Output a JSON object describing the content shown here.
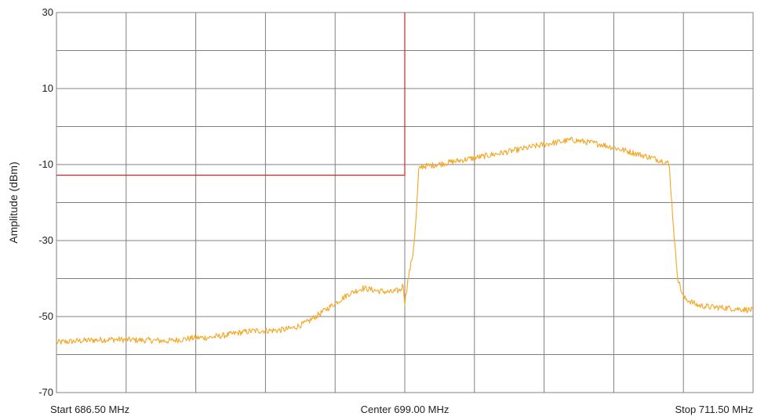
{
  "chart_data": {
    "type": "line",
    "title": "",
    "xlabel": "",
    "ylabel": "Amplitude (dBm)",
    "x_unit": "MHz",
    "xlim": [
      686.5,
      711.5
    ],
    "ylim": [
      -70,
      30
    ],
    "y_ticks": [
      30,
      10,
      -10,
      -30,
      -50,
      -70
    ],
    "y_tick_labels": [
      "30",
      "10",
      "-10",
      "-30",
      "-50",
      "-70"
    ],
    "x_tick_labels": [
      {
        "label": "Start 686.50 MHz",
        "value": 686.5
      },
      {
        "label": "Center 699.00 MHz",
        "value": 699.0
      },
      {
        "label": "Stop 711.50 MHz",
        "value": 711.5
      }
    ],
    "grid": true,
    "grid_divisions": {
      "x": 10,
      "y": 10
    },
    "colors": {
      "trace": "#f5a623",
      "limit": "#e02020",
      "grid": "#808080",
      "frame": "#808080",
      "background": "#ffffff"
    },
    "series": [
      {
        "role": "spectrum-trace",
        "x": [
          686.5,
          687.5,
          688.5,
          689.5,
          690.5,
          691.0,
          691.5,
          692.0,
          692.5,
          693.0,
          693.5,
          694.0,
          694.5,
          695.0,
          695.5,
          696.0,
          696.5,
          697.0,
          697.5,
          698.0,
          698.5,
          698.85,
          698.95,
          699.0,
          699.1,
          699.2,
          699.3,
          699.4,
          699.5,
          699.6,
          700.0,
          701.0,
          702.0,
          703.0,
          704.0,
          705.0,
          706.0,
          707.0,
          708.0,
          708.4,
          708.45,
          708.5,
          708.6,
          708.7,
          708.8,
          709.0,
          709.5,
          710.0,
          710.5,
          711.0,
          711.5
        ],
        "y": [
          -56.8,
          -56.3,
          -56.0,
          -56.2,
          -56.4,
          -56.0,
          -55.6,
          -55.5,
          -55.0,
          -54.3,
          -53.8,
          -53.7,
          -53.6,
          -53.0,
          -51.5,
          -49.0,
          -46.5,
          -44.0,
          -42.5,
          -43.2,
          -43.6,
          -43.0,
          -41.5,
          -46.5,
          -41.0,
          -37.0,
          -33.0,
          -25.0,
          -11.5,
          -10.5,
          -10.2,
          -8.9,
          -7.6,
          -6.2,
          -4.7,
          -3.5,
          -4.6,
          -6.5,
          -8.5,
          -9.4,
          -9.7,
          -11.0,
          -22.0,
          -32.0,
          -40.0,
          -45.0,
          -47.0,
          -47.5,
          -47.7,
          -48.0,
          -48.3
        ]
      },
      {
        "role": "limit-line",
        "x": [
          686.5,
          699.0,
          699.0
        ],
        "y": [
          -12.8,
          -12.8,
          30
        ]
      }
    ]
  }
}
